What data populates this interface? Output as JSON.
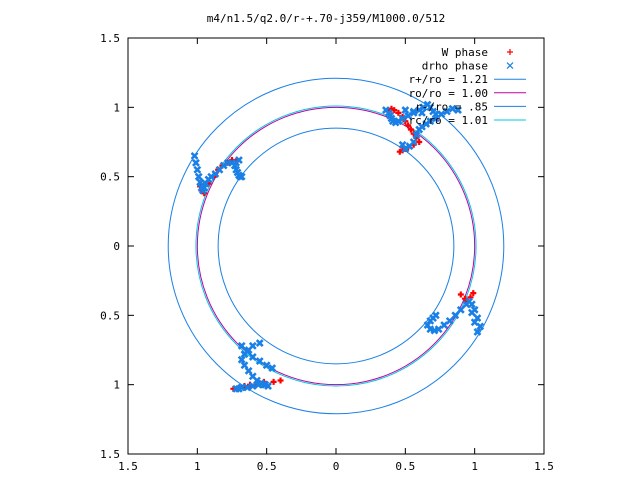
{
  "chart_data": {
    "type": "scatter",
    "title": "m4/n1.5/q2.0/r-+.70-j359/M1000.0/512",
    "xlabel": "",
    "ylabel": "",
    "xlim": [
      -1.5,
      1.5
    ],
    "ylim": [
      -1.5,
      1.5
    ],
    "xtick_values": [
      -1.5,
      -1,
      -0.5,
      0,
      0.5,
      1,
      1.5
    ],
    "xtick_labels": [
      "1.5",
      "1",
      "0.5",
      "0",
      "0.5",
      "1",
      "1.5"
    ],
    "ytick_values": [
      1.5,
      1,
      0.5,
      0,
      -0.5,
      -1,
      -1.5
    ],
    "ytick_labels": [
      "1.5",
      "1",
      "0.5",
      "0",
      "0.5",
      "1",
      "1.5"
    ],
    "grid": false,
    "legend_position": "top-right",
    "series": [
      {
        "name": "W phase",
        "kind": "points",
        "marker": "+",
        "color": "#ff0000",
        "x": [
          0.38,
          0.4,
          0.42,
          0.45,
          0.48,
          0.5,
          0.52,
          0.54,
          0.56,
          0.58,
          0.6,
          0.56,
          0.52,
          0.5,
          0.48,
          0.46,
          0.9,
          0.93,
          0.95,
          0.97,
          0.99,
          -0.95,
          -0.97,
          -0.98,
          -0.95,
          -0.92,
          -0.88,
          -0.85,
          -0.82,
          -0.78,
          -0.75,
          -0.72,
          -0.52,
          -0.55,
          -0.58,
          -0.62,
          -0.66,
          -0.7,
          -0.74,
          -0.4,
          -0.45
        ],
        "y": [
          0.97,
          0.99,
          0.98,
          0.96,
          0.93,
          0.9,
          0.87,
          0.84,
          0.81,
          0.78,
          0.75,
          0.73,
          0.71,
          0.7,
          0.69,
          0.68,
          -0.35,
          -0.38,
          -0.4,
          -0.37,
          -0.34,
          0.38,
          0.4,
          0.43,
          0.44,
          0.45,
          0.5,
          0.55,
          0.58,
          0.6,
          0.62,
          0.61,
          -0.98,
          -0.99,
          -1.0,
          -1.0,
          -1.01,
          -1.02,
          -1.03,
          -0.97,
          -0.98
        ]
      },
      {
        "name": "drho phase",
        "kind": "points",
        "marker": "x",
        "color": "#1a80e6",
        "x": [
          0.36,
          0.38,
          0.39,
          0.4,
          0.41,
          0.43,
          0.45,
          0.48,
          0.52,
          0.56,
          0.6,
          0.63,
          0.66,
          0.68,
          0.7,
          0.72,
          0.62,
          0.56,
          0.5,
          0.48,
          0.5,
          0.53,
          0.56,
          0.58,
          0.6,
          0.62,
          0.65,
          0.68,
          0.72,
          0.76,
          0.8,
          0.84,
          0.88,
          0.72,
          0.7,
          0.68,
          0.66,
          0.68,
          0.71,
          0.74,
          0.78,
          0.82,
          0.86,
          0.9,
          0.94,
          0.96,
          0.98,
          1.0,
          1.02,
          1.04,
          1.02,
          1.0,
          0.98,
          -1.02,
          -1.01,
          -1.0,
          -0.99,
          -0.98,
          -0.97,
          -0.96,
          -0.95,
          -0.94,
          -0.92,
          -0.9,
          -0.87,
          -0.84,
          -0.81,
          -0.78,
          -0.75,
          -0.73,
          -0.72,
          -0.71,
          -0.7,
          -0.69,
          -0.68,
          -0.7,
          -0.72,
          -0.68,
          -0.64,
          -0.6,
          -0.55,
          -0.5,
          -0.46,
          -0.55,
          -0.6,
          -0.63,
          -0.66,
          -0.68,
          -0.66,
          -0.63,
          -0.6,
          -0.57,
          -0.54,
          -0.51,
          -0.49,
          -0.52,
          -0.56,
          -0.6,
          -0.64,
          -0.68,
          -0.72,
          -0.7
        ],
        "y": [
          0.98,
          0.96,
          0.94,
          0.92,
          0.9,
          0.89,
          0.9,
          0.92,
          0.94,
          0.96,
          0.98,
          1.0,
          1.02,
          1.0,
          0.97,
          0.95,
          0.96,
          0.97,
          0.98,
          0.73,
          0.7,
          0.72,
          0.75,
          0.8,
          0.84,
          0.86,
          0.88,
          0.9,
          0.92,
          0.95,
          0.97,
          0.99,
          0.98,
          -0.5,
          -0.52,
          -0.54,
          -0.57,
          -0.6,
          -0.61,
          -0.6,
          -0.57,
          -0.54,
          -0.5,
          -0.46,
          -0.42,
          -0.4,
          -0.42,
          -0.46,
          -0.52,
          -0.58,
          -0.62,
          -0.55,
          -0.48,
          0.65,
          0.6,
          0.55,
          0.5,
          0.46,
          0.42,
          0.4,
          0.42,
          0.45,
          0.48,
          0.5,
          0.52,
          0.55,
          0.58,
          0.6,
          0.6,
          0.58,
          0.55,
          0.53,
          0.51,
          0.5,
          0.5,
          0.62,
          0.6,
          -0.72,
          -0.76,
          -0.8,
          -0.83,
          -0.86,
          -0.88,
          -0.7,
          -0.72,
          -0.75,
          -0.78,
          -0.82,
          -0.86,
          -0.9,
          -0.94,
          -0.97,
          -0.99,
          -1.0,
          -1.01,
          -1.0,
          -1.0,
          -1.01,
          -1.02,
          -1.02,
          -1.03,
          -1.03
        ]
      },
      {
        "name": "r+/ro = 1.21",
        "kind": "circle",
        "radius": 1.21,
        "color": "#1a80e6"
      },
      {
        "name": "ro/ro = 1.00",
        "kind": "circle",
        "radius": 1.0,
        "color": "#c000a0"
      },
      {
        "name": "r-/ro = .85",
        "kind": "circle",
        "radius": 0.85,
        "color": "#1a80e6"
      },
      {
        "name": "rc/ro = 1.01",
        "kind": "circle",
        "radius": 1.01,
        "color": "#00c8e0"
      }
    ]
  }
}
